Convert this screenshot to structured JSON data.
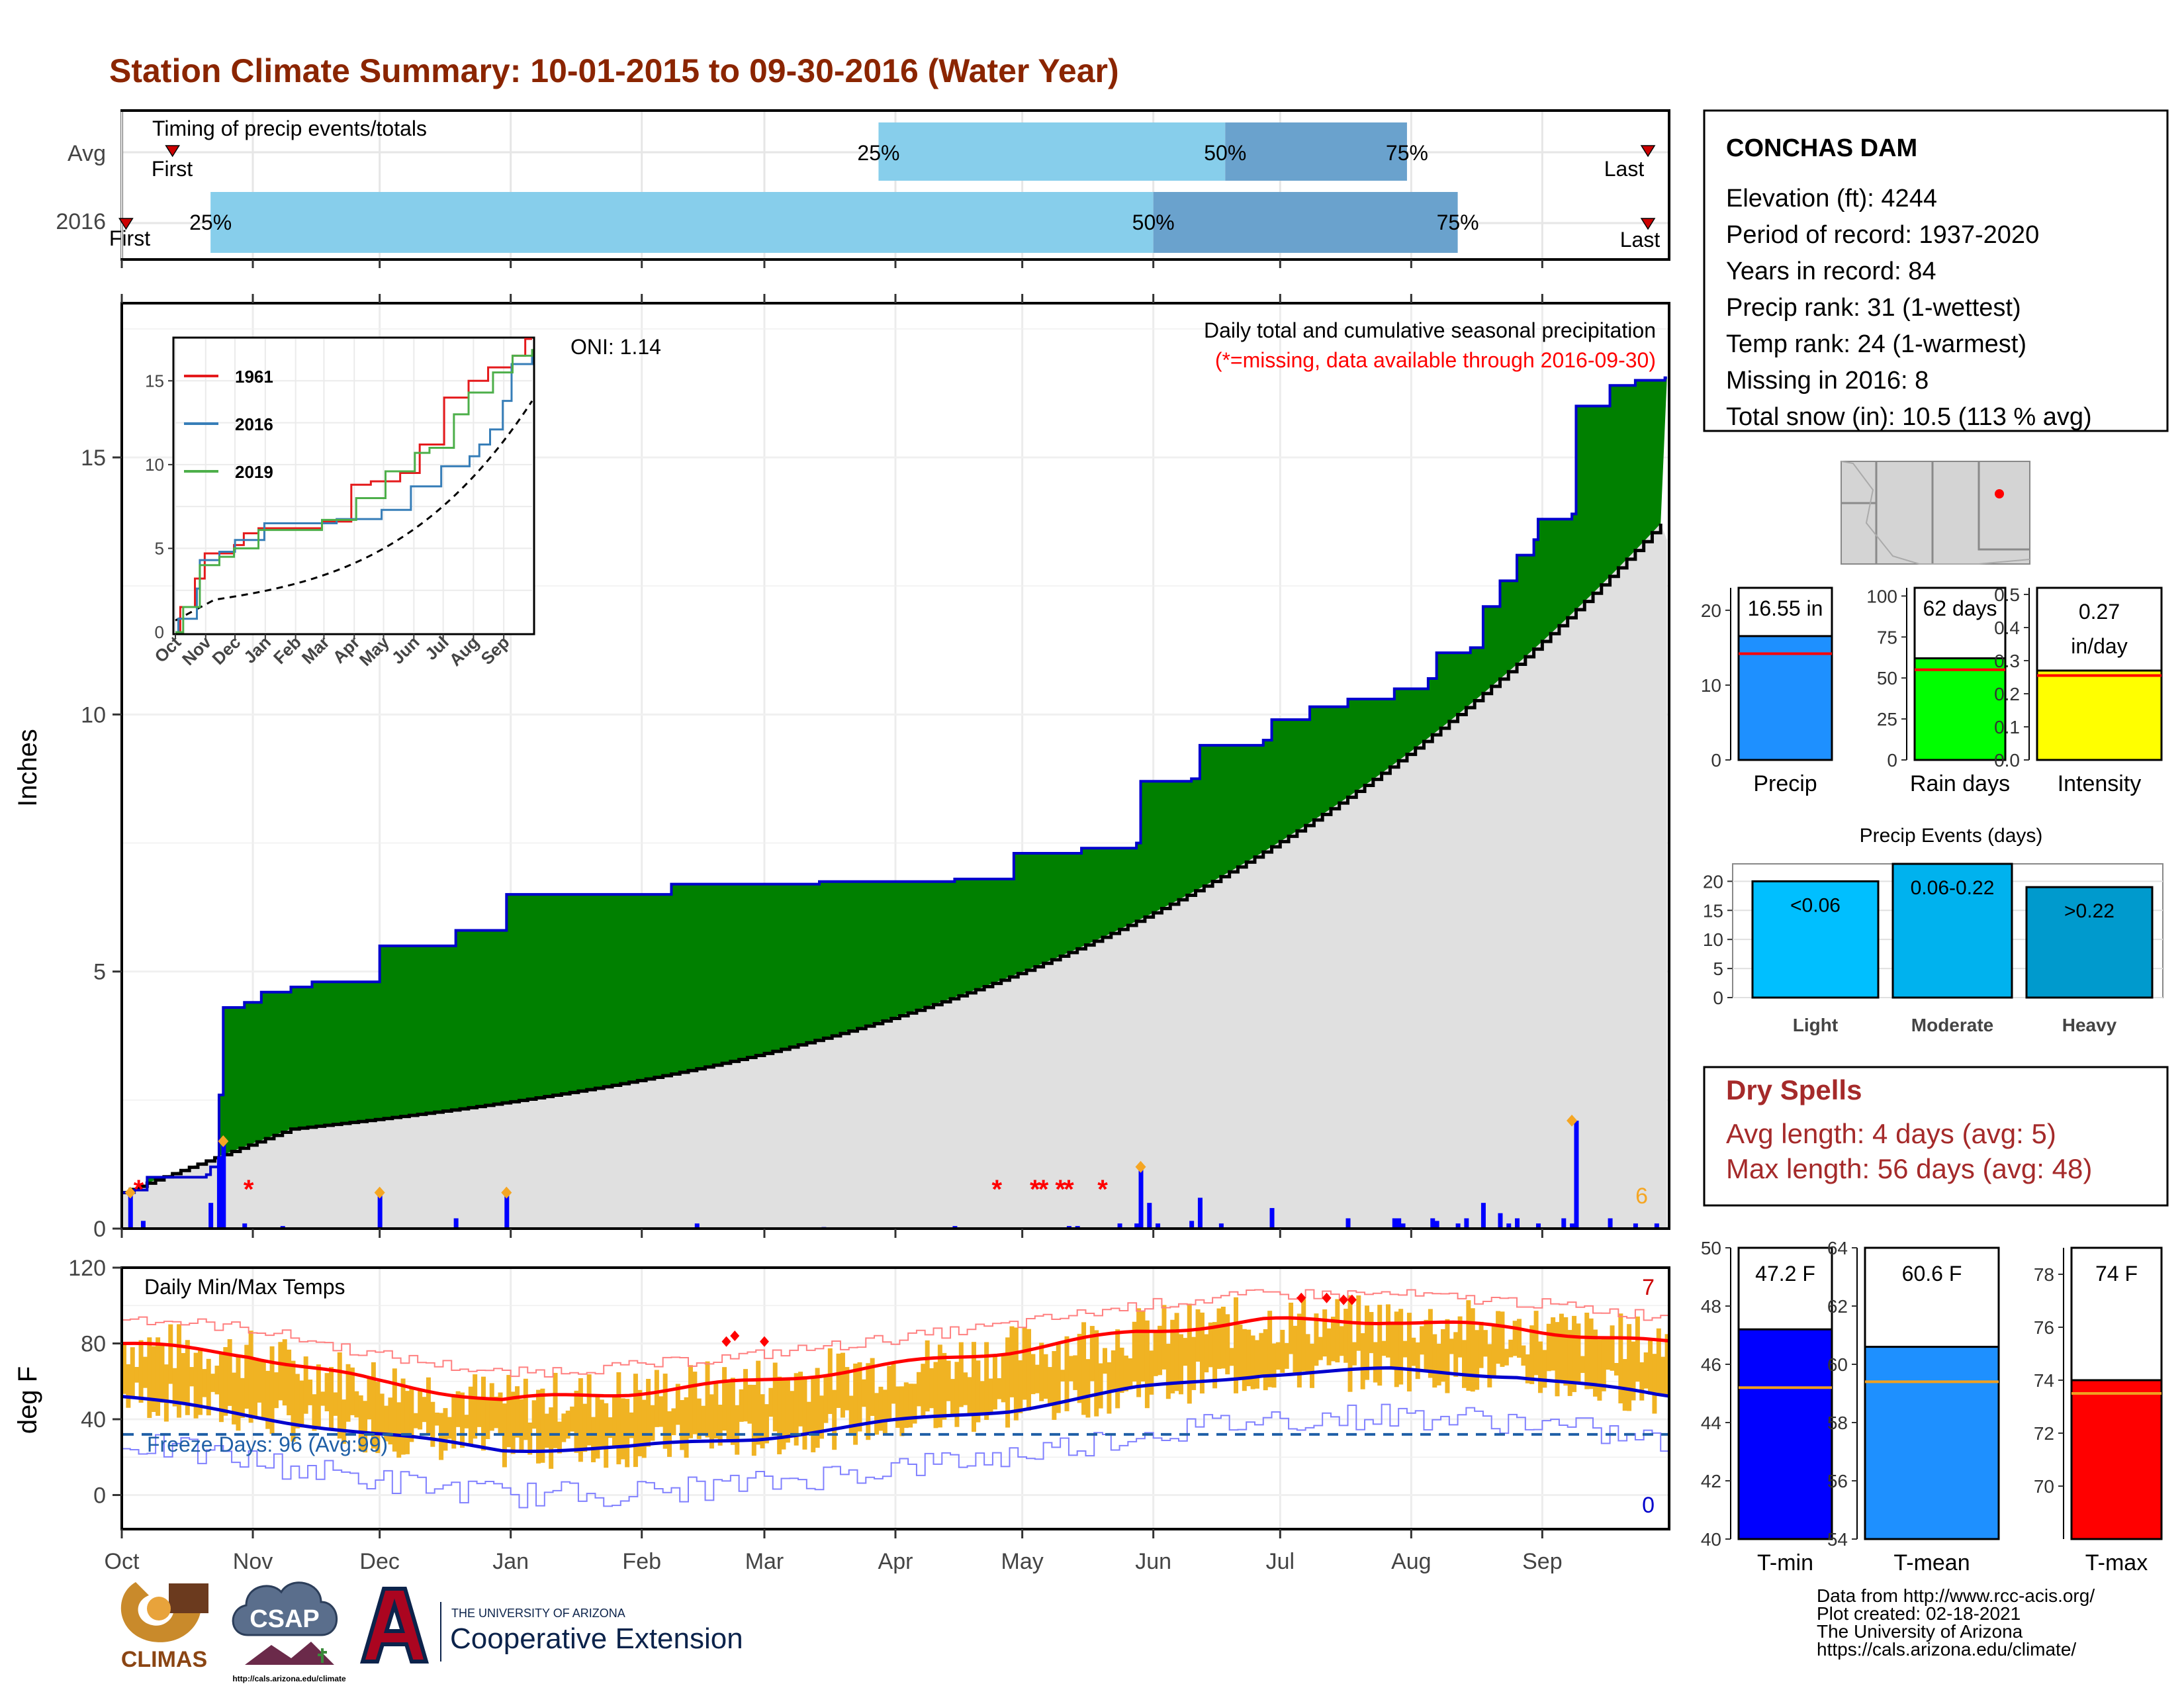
{
  "title": "Station Climate Summary: 10-01-2015 to 09-30-2016 (Water Year)",
  "months": [
    "Oct",
    "Nov",
    "Dec",
    "Jan",
    "Feb",
    "Mar",
    "Apr",
    "May",
    "Jun",
    "Jul",
    "Aug",
    "Sep"
  ],
  "timing": {
    "label": "Timing of precip events/totals",
    "rows": [
      "Avg",
      "2016"
    ],
    "first_label": "First",
    "first_label_2016": "First",
    "last_label": "Last",
    "pct_labels": [
      "25%",
      "50%",
      "75%"
    ]
  },
  "precip": {
    "ylabel": "Inches",
    "title": "Daily total and cumulative seasonal precipitation",
    "missing_note": "(*=missing, data available through 2016-09-30)",
    "oni": "ONI: 1.14",
    "corner_count": "6"
  },
  "temps": {
    "label": "Daily Min/Max Temps",
    "ylabel": "deg F",
    "freeze_text": "Freeze Days: 96 (Avg:99)",
    "max_count": "7",
    "min_count": "0"
  },
  "station": {
    "name": "CONCHAS DAM",
    "lines": [
      "Elevation (ft): 4244",
      "Period of record: 1937-2020",
      "Years in record: 84",
      "Precip rank: 31 (1-wettest)",
      "Temp rank: 24 (1-warmest)",
      "Missing in 2016: 8",
      "Total snow (in): 10.5 (113 % avg)"
    ]
  },
  "stats_bars": [
    {
      "label": "Precip",
      "value_text": "16.55 in",
      "color": "#1e90ff"
    },
    {
      "label": "Rain days",
      "value_text": "62 days",
      "color": "#00ff00"
    },
    {
      "label": "Intensity",
      "value_text": "0.27\nin/day",
      "color": "#ffff00"
    }
  ],
  "precip_events": {
    "title": "Precip Events (days)",
    "categories": [
      "Light",
      "Moderate",
      "Heavy"
    ],
    "bar_labels": [
      "<0.06",
      "0.06-0.22",
      ">0.22"
    ]
  },
  "dry_spells": {
    "title": "Dry Spells",
    "avg": "Avg length: 4 days (avg: 5)",
    "max": "Max length: 56 days (avg: 48)"
  },
  "temp_bars": [
    {
      "label": "T-min",
      "value_text": "47.2 F",
      "color": "#0000ff"
    },
    {
      "label": "T-mean",
      "value_text": "60.6 F",
      "color": "#1e90ff"
    },
    {
      "label": "T-max",
      "value_text": "74 F",
      "color": "#ff0000"
    }
  ],
  "credits": [
    "Data from http://www.rcc-acis.org/",
    "Plot created: 02-18-2021",
    "The University of Arizona",
    "https://cals.arizona.edu/climate/"
  ],
  "logos": {
    "climas": "CLIMAS",
    "csap": "CSAP",
    "csap_url": "http://cals.arizona.edu/climate",
    "ua_small": "THE UNIVERSITY OF ARIZONA",
    "ua_big": "Cooperative Extension"
  },
  "chart_data": [
    {
      "type": "bar",
      "name": "timing",
      "rows": [
        "Avg",
        "2016"
      ],
      "avg": {
        "first": "Oct 13",
        "p25": "Mar 28",
        "p50": "Jun 18",
        "p75": "Jul 31",
        "last": "Sep 26"
      },
      "y2016": {
        "first": "Oct 2",
        "p25": "Oct 22",
        "p50": "Jun 1",
        "p75": "Aug 12",
        "last": "Sep 26"
      }
    },
    {
      "type": "area",
      "name": "cumulative_precip",
      "ylabel": "Inches",
      "ylim": [
        0,
        18
      ],
      "yticks": [
        0,
        5,
        10,
        15
      ],
      "cumulative_2016_steps": [
        [
          0,
          0.7
        ],
        [
          3,
          0.75
        ],
        [
          6,
          1.0
        ],
        [
          20,
          1.05
        ],
        [
          21,
          1.2
        ],
        [
          23,
          2.6
        ],
        [
          24,
          4.3
        ],
        [
          29,
          4.4
        ],
        [
          33,
          4.6
        ],
        [
          40,
          4.7
        ],
        [
          45,
          4.8
        ],
        [
          61,
          5.5
        ],
        [
          79,
          5.8
        ],
        [
          91,
          6.5
        ],
        [
          130,
          6.7
        ],
        [
          165,
          6.75
        ],
        [
          197,
          6.8
        ],
        [
          210,
          6.8
        ],
        [
          211,
          7.3
        ],
        [
          227,
          7.4
        ],
        [
          240,
          7.5
        ],
        [
          241,
          8.7
        ],
        [
          253,
          8.75
        ],
        [
          255,
          9.4
        ],
        [
          270,
          9.5
        ],
        [
          272,
          9.9
        ],
        [
          281,
          10.15
        ],
        [
          290,
          10.3
        ],
        [
          301,
          10.5
        ],
        [
          309,
          10.7
        ],
        [
          311,
          11.2
        ],
        [
          319,
          11.3
        ],
        [
          322,
          12.1
        ],
        [
          326,
          12.6
        ],
        [
          330,
          13.1
        ],
        [
          334,
          13.4
        ],
        [
          335,
          13.8
        ],
        [
          343,
          13.9
        ],
        [
          344,
          16.0
        ],
        [
          352,
          16.4
        ],
        [
          358,
          16.5
        ],
        [
          365,
          16.55
        ]
      ],
      "avg_end": 13.8,
      "daily_spikes_days": [
        2,
        5,
        21,
        23,
        24,
        29,
        38,
        61,
        79,
        91,
        136,
        166,
        197,
        224,
        226,
        236,
        240,
        241,
        243,
        245,
        253,
        255,
        260,
        272,
        290,
        301,
        302,
        303,
        310,
        311,
        316,
        318,
        322,
        326,
        328,
        330,
        335,
        341,
        343,
        344,
        352,
        358,
        363
      ],
      "daily_spikes_values": [
        0.7,
        0.15,
        0.5,
        1.4,
        1.7,
        0.1,
        0.05,
        0.7,
        0.2,
        0.7,
        0.1,
        0.03,
        0.05,
        0.05,
        0.05,
        0.1,
        0.1,
        1.2,
        0.5,
        0.1,
        0.15,
        0.6,
        0.1,
        0.4,
        0.2,
        0.2,
        0.2,
        0.1,
        0.2,
        0.15,
        0.1,
        0.2,
        0.5,
        0.3,
        0.1,
        0.2,
        0.1,
        0.2,
        0.1,
        2.1,
        0.2,
        0.1,
        0.1
      ],
      "missing_days": [
        4,
        30,
        207,
        216,
        218,
        222,
        224,
        232
      ]
    },
    {
      "type": "line",
      "name": "inset_cumulative",
      "series": [
        {
          "name": "1961",
          "color": "#e41a1c"
        },
        {
          "name": "2016",
          "color": "#377eb8"
        },
        {
          "name": "2019",
          "color": "#4daf4a"
        }
      ],
      "ylim": [
        0,
        17.5
      ],
      "yticks": [
        5,
        10,
        15
      ],
      "xlabels": [
        "Oct",
        "Nov",
        "Dec",
        "Jan",
        "Feb",
        "Mar",
        "Apr",
        "May",
        "Jun",
        "Jul",
        "Aug",
        "Sep"
      ]
    },
    {
      "type": "bar",
      "name": "daily_temps",
      "ylabel": "deg F",
      "ylim": [
        -18,
        120
      ],
      "yticks": [
        0,
        40,
        80,
        120
      ],
      "freeze_line": 32,
      "avg_max_curve": [
        [
          0,
          80
        ],
        [
          30,
          74
        ],
        [
          60,
          60
        ],
        [
          90,
          50
        ],
        [
          120,
          54
        ],
        [
          150,
          60
        ],
        [
          180,
          68
        ],
        [
          210,
          76
        ],
        [
          240,
          86
        ],
        [
          270,
          92
        ],
        [
          300,
          92
        ],
        [
          330,
          88
        ],
        [
          365,
          80
        ]
      ],
      "avg_min_curve": [
        [
          0,
          52
        ],
        [
          30,
          42
        ],
        [
          60,
          32
        ],
        [
          90,
          24
        ],
        [
          120,
          25
        ],
        [
          150,
          30
        ],
        [
          180,
          38
        ],
        [
          210,
          45
        ],
        [
          240,
          56
        ],
        [
          270,
          64
        ],
        [
          300,
          66
        ],
        [
          330,
          63
        ],
        [
          365,
          52
        ]
      ]
    },
    {
      "type": "bar",
      "name": "annual_stats",
      "categories": [
        "Precip",
        "Rain days",
        "Intensity"
      ],
      "values": [
        16.55,
        62,
        0.27
      ],
      "averages": [
        14.2,
        55,
        0.255
      ],
      "ylims": [
        [
          0,
          23
        ],
        [
          0,
          105
        ],
        [
          0,
          0.52
        ]
      ]
    },
    {
      "type": "bar",
      "name": "precip_events",
      "categories": [
        "Light",
        "Moderate",
        "Heavy"
      ],
      "values": [
        20,
        23,
        19
      ],
      "ylim": [
        0,
        23
      ],
      "yticks": [
        0,
        5,
        10,
        15,
        20
      ]
    },
    {
      "type": "bar",
      "name": "temp_stats",
      "categories": [
        "T-min",
        "T-mean",
        "T-max"
      ],
      "values": [
        47.2,
        60.6,
        74
      ],
      "averages": [
        45.2,
        59.4,
        73.5
      ],
      "ylims": [
        [
          40,
          50
        ],
        [
          54,
          64
        ],
        [
          68,
          79
        ]
      ]
    }
  ]
}
